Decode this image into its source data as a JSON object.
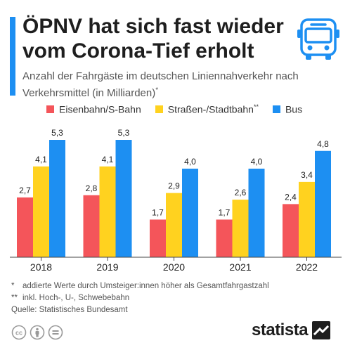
{
  "header": {
    "title": "ÖPNV hat sich fast wieder vom Corona-Tief erholt",
    "subtitle": "Anzahl der Fahrgäste im deutschen Liniennahverkehr nach Verkehrsmittel (in Milliarden)",
    "subtitle_mark": "*",
    "icon": "bus-icon"
  },
  "legend": [
    {
      "label": "Eisenbahn/S-Bahn",
      "mark": "",
      "color": "#f4555a"
    },
    {
      "label": "Straßen-/Stadtbahn",
      "mark": "**",
      "color": "#ffd21f"
    },
    {
      "label": "Bus",
      "mark": "",
      "color": "#1d8ff2"
    }
  ],
  "chart_data": {
    "type": "bar",
    "title": "ÖPNV hat sich fast wieder vom Corona-Tief erholt",
    "subtitle": "Anzahl der Fahrgäste im deutschen Liniennahverkehr nach Verkehrsmittel (in Milliarden)",
    "xlabel": "",
    "ylabel": "",
    "categories": [
      "2018",
      "2019",
      "2020",
      "2021",
      "2022"
    ],
    "series": [
      {
        "name": "Eisenbahn/S-Bahn",
        "color": "#f4555a",
        "values": [
          2.7,
          2.8,
          1.7,
          1.7,
          2.4
        ],
        "labels": [
          "2,7",
          "2,8",
          "1,7",
          "1,7",
          "2,4"
        ]
      },
      {
        "name": "Straßen-/Stadtbahn",
        "color": "#ffd21f",
        "values": [
          4.1,
          4.1,
          2.9,
          2.6,
          3.4
        ],
        "labels": [
          "4,1",
          "4,1",
          "2,9",
          "2,6",
          "3,4"
        ]
      },
      {
        "name": "Bus",
        "color": "#1d8ff2",
        "values": [
          5.3,
          5.3,
          4.0,
          4.0,
          4.8
        ],
        "labels": [
          "5,3",
          "5,3",
          "4,0",
          "4,0",
          "4,8"
        ]
      }
    ],
    "ylim": [
      0,
      5.3
    ],
    "grid": false,
    "legend_position": "top"
  },
  "footnotes": [
    {
      "mark": "*",
      "text": "addierte Werte durch Umsteiger:innen höher als Gesamtfahrgastzahl"
    },
    {
      "mark": "**",
      "text": "inkl. Hoch-, U-, Schwebebahn"
    }
  ],
  "source": "Quelle: Statistisches Bundesamt",
  "license_icons": [
    "cc-icon",
    "person-icon",
    "equals-icon"
  ],
  "brand": "statista"
}
